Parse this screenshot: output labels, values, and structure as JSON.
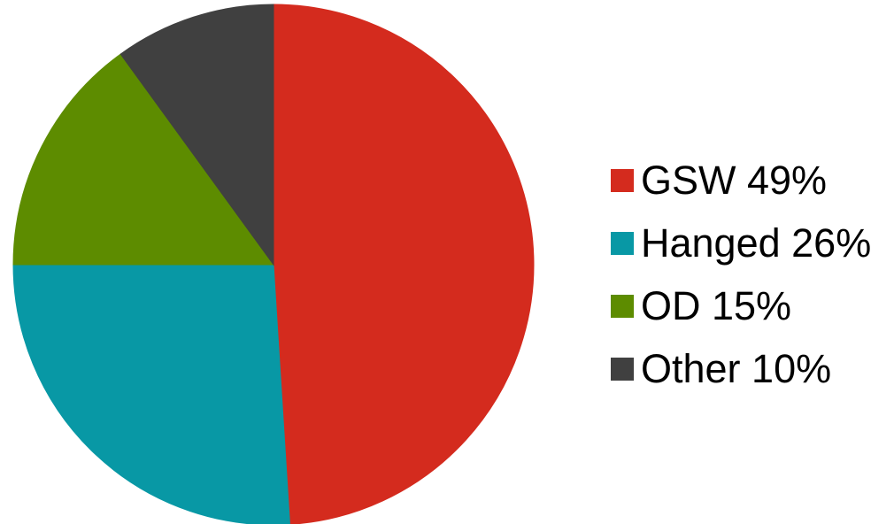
{
  "chart_data": {
    "type": "pie",
    "slices": [
      {
        "label": "GSW 49%",
        "value": 49,
        "color": "#d42b1e"
      },
      {
        "label": "Hanged 26%",
        "value": 26,
        "color": "#0898a5"
      },
      {
        "label": "OD 15%",
        "value": 15,
        "color": "#5d8c00"
      },
      {
        "label": "Other 10%",
        "value": 10,
        "color": "#404040"
      }
    ],
    "start_angle": "12 o'clock",
    "direction": "clockwise",
    "legend_position": "right"
  },
  "legend": {
    "items": [
      {
        "label": "GSW 49%"
      },
      {
        "label": "Hanged 26%"
      },
      {
        "label": "OD 15%"
      },
      {
        "label": "Other 10%"
      }
    ]
  }
}
